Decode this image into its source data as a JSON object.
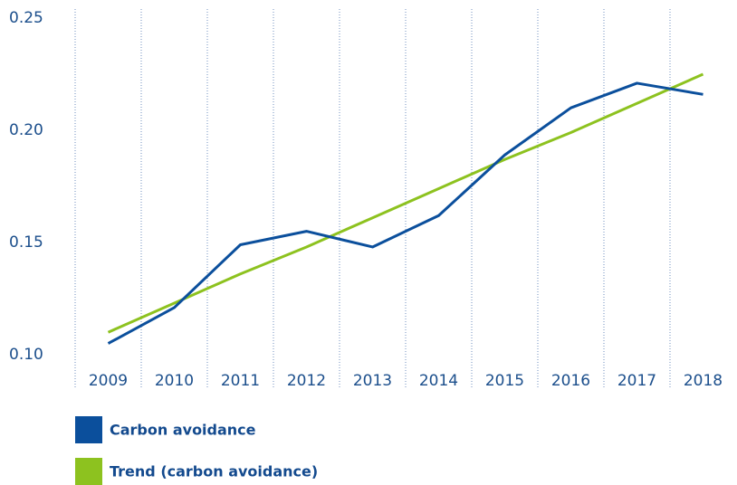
{
  "chart_data": {
    "type": "line",
    "categories": [
      "2009",
      "2010",
      "2011",
      "2012",
      "2013",
      "2014",
      "2015",
      "2016",
      "2017",
      "2018"
    ],
    "series": [
      {
        "name": "Carbon avoidance",
        "color": "#0b4f9c",
        "values": [
          0.105,
          0.121,
          0.149,
          0.155,
          0.148,
          0.162,
          0.189,
          0.21,
          0.221,
          0.216
        ]
      },
      {
        "name": "Trend (carbon avoidance)",
        "color": "#8dc21f",
        "values": [
          0.11,
          0.123,
          0.136,
          0.148,
          0.161,
          0.174,
          0.187,
          0.199,
          0.212,
          0.225
        ]
      }
    ],
    "ylim": [
      0.1,
      0.25
    ],
    "yticks": [
      {
        "value": 0.1,
        "label": "0.10"
      },
      {
        "value": 0.15,
        "label": "0.15"
      },
      {
        "value": 0.2,
        "label": "0.20"
      },
      {
        "value": 0.25,
        "label": "0.25"
      }
    ],
    "grid": true
  }
}
